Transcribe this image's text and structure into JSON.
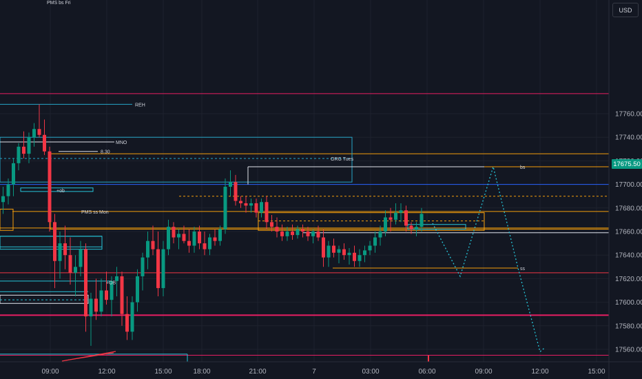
{
  "toolbar": {
    "currency": "USD"
  },
  "last_price": "17675.50",
  "colors": {
    "up": "#089981",
    "down": "#f23645",
    "background": "#131722",
    "grid": "#1e222d",
    "orange_box": "#f59e0b",
    "blue_line": "#2962ff",
    "teal_line": "#26c6da",
    "red_line": "#f23645"
  },
  "chart_data": {
    "type": "candlestick",
    "y_axis": {
      "ticks": [
        "17560.00",
        "17580.00",
        "17600.00",
        "17620.00",
        "17640.00",
        "17660.00",
        "17680.00",
        "17700.00",
        "17720.00",
        "17740.00",
        "17760.00"
      ],
      "range": [
        17553,
        17780
      ]
    },
    "x_axis": {
      "ticks": [
        "09:00",
        "12:00",
        "15:00",
        "18:00",
        "21:00",
        "7",
        "03:00",
        "06:00",
        "09:00",
        "12:00",
        "15:00"
      ]
    },
    "candles": [
      [
        17685,
        17698,
        17675,
        17690
      ],
      [
        17690,
        17705,
        17683,
        17700
      ],
      [
        17700,
        17722,
        17690,
        17718
      ],
      [
        17718,
        17735,
        17712,
        17732
      ],
      [
        17732,
        17745,
        17722,
        17726
      ],
      [
        17726,
        17744,
        17718,
        17740
      ],
      [
        17740,
        17752,
        17732,
        17747
      ],
      [
        17747,
        17768,
        17740,
        17742
      ],
      [
        17742,
        17755,
        17725,
        17728
      ],
      [
        17728,
        17732,
        17660,
        17668
      ],
      [
        17668,
        17675,
        17612,
        17635
      ],
      [
        17635,
        17660,
        17620,
        17650
      ],
      [
        17650,
        17665,
        17628,
        17640
      ],
      [
        17640,
        17655,
        17615,
        17625
      ],
      [
        17625,
        17640,
        17605,
        17630
      ],
      [
        17630,
        17652,
        17622,
        17645
      ],
      [
        17645,
        17650,
        17575,
        17588
      ],
      [
        17588,
        17608,
        17563,
        17603
      ],
      [
        17603,
        17620,
        17585,
        17592
      ],
      [
        17592,
        17620,
        17588,
        17610
      ],
      [
        17610,
        17626,
        17598,
        17602
      ],
      [
        17602,
        17622,
        17588,
        17618
      ],
      [
        17618,
        17630,
        17605,
        17622
      ],
      [
        17622,
        17626,
        17580,
        17590
      ],
      [
        17590,
        17605,
        17568,
        17575
      ],
      [
        17575,
        17605,
        17568,
        17600
      ],
      [
        17600,
        17628,
        17592,
        17622
      ],
      [
        17622,
        17642,
        17610,
        17638
      ],
      [
        17638,
        17660,
        17628,
        17652
      ],
      [
        17652,
        17665,
        17640,
        17645
      ],
      [
        17645,
        17660,
        17605,
        17612
      ],
      [
        17612,
        17652,
        17605,
        17645
      ],
      [
        17645,
        17670,
        17640,
        17664
      ],
      [
        17664,
        17668,
        17650,
        17655
      ],
      [
        17655,
        17662,
        17645,
        17658
      ],
      [
        17658,
        17665,
        17650,
        17652
      ],
      [
        17652,
        17662,
        17642,
        17648
      ],
      [
        17648,
        17664,
        17642,
        17660
      ],
      [
        17660,
        17665,
        17645,
        17650
      ],
      [
        17650,
        17660,
        17640,
        17645
      ],
      [
        17645,
        17658,
        17640,
        17655
      ],
      [
        17655,
        17662,
        17648,
        17652
      ],
      [
        17652,
        17665,
        17648,
        17662
      ],
      [
        17662,
        17705,
        17658,
        17698
      ],
      [
        17698,
        17712,
        17690,
        17702
      ],
      [
        17702,
        17708,
        17682,
        17686
      ],
      [
        17686,
        17690,
        17680,
        17684
      ],
      [
        17684,
        17690,
        17676,
        17682
      ],
      [
        17682,
        17688,
        17676,
        17684
      ],
      [
        17684,
        17688,
        17672,
        17676
      ],
      [
        17676,
        17688,
        17672,
        17685
      ],
      [
        17685,
        17690,
        17662,
        17668
      ],
      [
        17668,
        17674,
        17660,
        17664
      ],
      [
        17664,
        17672,
        17655,
        17660
      ],
      [
        17660,
        17666,
        17652,
        17656
      ],
      [
        17656,
        17664,
        17652,
        17660
      ],
      [
        17660,
        17666,
        17653,
        17657
      ],
      [
        17657,
        17665,
        17654,
        17662
      ],
      [
        17662,
        17666,
        17655,
        17660
      ],
      [
        17660,
        17664,
        17652,
        17656
      ],
      [
        17656,
        17662,
        17650,
        17660
      ],
      [
        17660,
        17665,
        17652,
        17655
      ],
      [
        17655,
        17662,
        17630,
        17638
      ],
      [
        17638,
        17652,
        17630,
        17648
      ],
      [
        17648,
        17654,
        17638,
        17642
      ],
      [
        17642,
        17648,
        17633,
        17645
      ],
      [
        17645,
        17650,
        17636,
        17640
      ],
      [
        17640,
        17646,
        17632,
        17642
      ],
      [
        17642,
        17648,
        17630,
        17635
      ],
      [
        17635,
        17645,
        17630,
        17640
      ],
      [
        17640,
        17648,
        17634,
        17644
      ],
      [
        17644,
        17652,
        17640,
        17648
      ],
      [
        17648,
        17660,
        17642,
        17655
      ],
      [
        17655,
        17665,
        17648,
        17660
      ],
      [
        17660,
        17678,
        17656,
        17672
      ],
      [
        17672,
        17680,
        17660,
        17670
      ],
      [
        17670,
        17684,
        17666,
        17676
      ],
      [
        17676,
        17684,
        17668,
        17678
      ],
      [
        17678,
        17682,
        17660,
        17665
      ],
      [
        17665,
        17668,
        17658,
        17662
      ],
      [
        17662,
        17668,
        17656,
        17664
      ],
      [
        17664,
        17680,
        17660,
        17675
      ]
    ],
    "levels": [
      {
        "label": "PMS bs Fri",
        "price": 17777
      },
      {
        "label": "REH",
        "price": 17768
      },
      {
        "label": "MNO",
        "price": 17736
      },
      {
        "label": "8.30",
        "price": 17728
      },
      {
        "label": "ORG Tues",
        "price": 17722
      },
      {
        "label": "bs",
        "price": 17715
      },
      {
        "label": "PMS ss Mon",
        "price": 17677
      },
      {
        "label": "ss",
        "price": 17629
      }
    ],
    "annotations": [
      "+ob",
      "+OB"
    ],
    "projection": [
      [
        17667,
        17675
      ],
      [
        17622,
        17622
      ],
      [
        17715,
        17715
      ],
      [
        17629,
        17629
      ],
      [
        17558,
        17558
      ]
    ]
  }
}
